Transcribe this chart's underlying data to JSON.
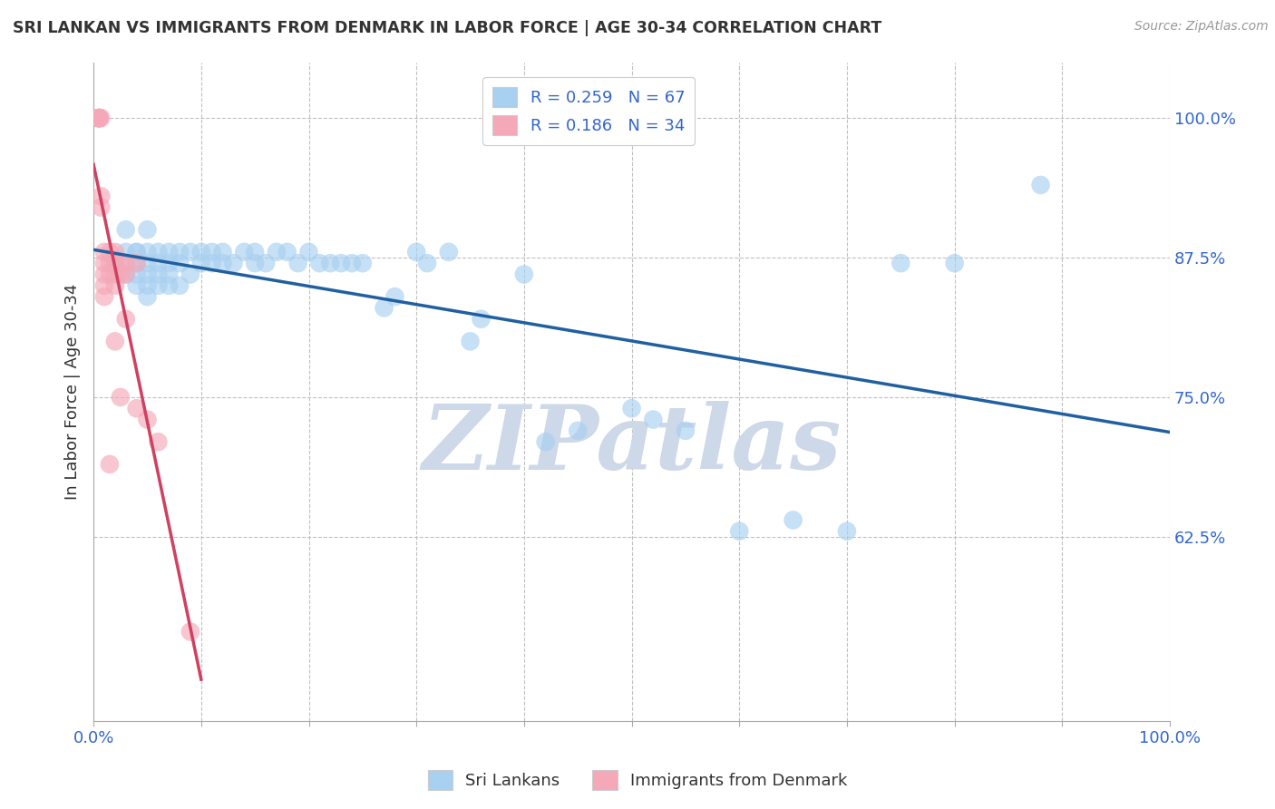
{
  "title": "SRI LANKAN VS IMMIGRANTS FROM DENMARK IN LABOR FORCE | AGE 30-34 CORRELATION CHART",
  "source": "Source: ZipAtlas.com",
  "ylabel": "In Labor Force | Age 30-34",
  "xlim": [
    0.0,
    1.0
  ],
  "ylim": [
    0.46,
    1.05
  ],
  "yticks": [
    0.625,
    0.75,
    0.875,
    1.0
  ],
  "ytick_labels": [
    "62.5%",
    "75.0%",
    "87.5%",
    "100.0%"
  ],
  "xticks": [
    0.0,
    0.1,
    0.2,
    0.3,
    0.4,
    0.5,
    0.6,
    0.7,
    0.8,
    0.9,
    1.0
  ],
  "xtick_labels": [
    "0.0%",
    "",
    "",
    "",
    "",
    "",
    "",
    "",
    "",
    "",
    "100.0%"
  ],
  "blue_R": 0.259,
  "blue_N": 67,
  "pink_R": 0.186,
  "pink_N": 34,
  "blue_color": "#a8d0f0",
  "pink_color": "#f5a8b8",
  "blue_line_color": "#2060a0",
  "pink_line_color": "#d04060",
  "legend_label_blue": "Sri Lankans",
  "legend_label_pink": "Immigrants from Denmark",
  "watermark": "ZIPatlas",
  "watermark_color": "#cdd8e8",
  "background_color": "#ffffff",
  "grid_color": "#bbbbbb",
  "title_color": "#333333",
  "blue_x": [
    0.02,
    0.03,
    0.03,
    0.03,
    0.04,
    0.04,
    0.04,
    0.04,
    0.04,
    0.05,
    0.05,
    0.05,
    0.05,
    0.05,
    0.05,
    0.06,
    0.06,
    0.06,
    0.06,
    0.07,
    0.07,
    0.07,
    0.07,
    0.08,
    0.08,
    0.08,
    0.09,
    0.09,
    0.1,
    0.1,
    0.11,
    0.11,
    0.12,
    0.12,
    0.13,
    0.14,
    0.15,
    0.15,
    0.16,
    0.17,
    0.18,
    0.19,
    0.2,
    0.21,
    0.22,
    0.23,
    0.24,
    0.25,
    0.27,
    0.28,
    0.3,
    0.31,
    0.33,
    0.35,
    0.36,
    0.4,
    0.42,
    0.45,
    0.5,
    0.52,
    0.55,
    0.6,
    0.65,
    0.7,
    0.75,
    0.8,
    0.88
  ],
  "blue_y": [
    0.87,
    0.88,
    0.86,
    0.9,
    0.88,
    0.87,
    0.86,
    0.85,
    0.88,
    0.88,
    0.87,
    0.86,
    0.85,
    0.84,
    0.9,
    0.88,
    0.87,
    0.86,
    0.85,
    0.88,
    0.87,
    0.86,
    0.85,
    0.88,
    0.87,
    0.85,
    0.88,
    0.86,
    0.88,
    0.87,
    0.88,
    0.87,
    0.88,
    0.87,
    0.87,
    0.88,
    0.88,
    0.87,
    0.87,
    0.88,
    0.88,
    0.87,
    0.88,
    0.87,
    0.87,
    0.87,
    0.87,
    0.87,
    0.83,
    0.84,
    0.88,
    0.87,
    0.88,
    0.8,
    0.82,
    0.86,
    0.71,
    0.72,
    0.74,
    0.73,
    0.72,
    0.63,
    0.64,
    0.63,
    0.87,
    0.87,
    0.94
  ],
  "pink_x": [
    0.005,
    0.005,
    0.005,
    0.005,
    0.005,
    0.005,
    0.007,
    0.007,
    0.007,
    0.01,
    0.01,
    0.01,
    0.01,
    0.01,
    0.015,
    0.015,
    0.015,
    0.015,
    0.02,
    0.02,
    0.02,
    0.02,
    0.02,
    0.025,
    0.025,
    0.025,
    0.03,
    0.03,
    0.03,
    0.04,
    0.04,
    0.05,
    0.06,
    0.09
  ],
  "pink_y": [
    1.0,
    1.0,
    1.0,
    1.0,
    1.0,
    1.0,
    1.0,
    0.93,
    0.92,
    0.88,
    0.87,
    0.86,
    0.85,
    0.84,
    0.88,
    0.87,
    0.86,
    0.69,
    0.88,
    0.87,
    0.86,
    0.85,
    0.8,
    0.87,
    0.86,
    0.75,
    0.87,
    0.86,
    0.82,
    0.87,
    0.74,
    0.73,
    0.71,
    0.54
  ]
}
